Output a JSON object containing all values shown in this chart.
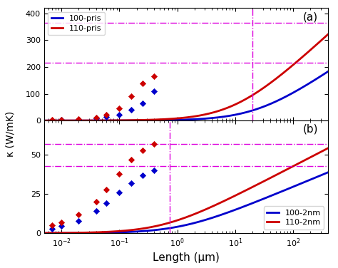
{
  "title_a": "(a)",
  "title_b": "(b)",
  "xlabel": "Length (μm)",
  "ylabel": "κ (W/mK)",
  "ylim_a": [
    0,
    420
  ],
  "ylim_b": [
    0,
    72
  ],
  "yticks_a": [
    0,
    100,
    200,
    300,
    400
  ],
  "yticks_b": [
    0,
    25,
    50
  ],
  "hline_a_blue": 215,
  "hline_a_red": 365,
  "vline_a": 20.0,
  "hline_b_blue": 43,
  "hline_b_red": 57,
  "vline_b": 0.75,
  "kappa_inf_a_blue": 240,
  "kappa_inf_a_red": 400,
  "L0_a_blue": 25.0,
  "L0_a_red": 10.0,
  "kappa_inf_b_blue": 45,
  "kappa_inf_b_red": 62,
  "L0_b_blue": 1.2,
  "L0_b_red": 0.6,
  "scatter_x": [
    0.007,
    0.01,
    0.02,
    0.04,
    0.06,
    0.1,
    0.16,
    0.25,
    0.4
  ],
  "scatter_a_blue_y": [
    1.5,
    2.0,
    3.5,
    8.0,
    13.0,
    22.0,
    40.0,
    65.0,
    110.0
  ],
  "scatter_a_red_y": [
    2.0,
    3.0,
    5.0,
    12.0,
    22.0,
    45.0,
    90.0,
    140.0,
    165.0
  ],
  "scatter_b_blue_y": [
    3.0,
    4.5,
    8.0,
    14.0,
    19.0,
    26.0,
    32.0,
    37.0,
    40.0
  ],
  "scatter_b_red_y": [
    5.0,
    7.0,
    12.0,
    20.0,
    28.0,
    38.0,
    47.0,
    53.0,
    57.0
  ],
  "color_blue": "#0000cc",
  "color_red": "#cc0000",
  "color_magenta": "#dd00dd",
  "legend_a_labels": [
    "100-pris",
    "110-pris"
  ],
  "legend_b_labels": [
    "100-2nm",
    "110-2nm"
  ]
}
